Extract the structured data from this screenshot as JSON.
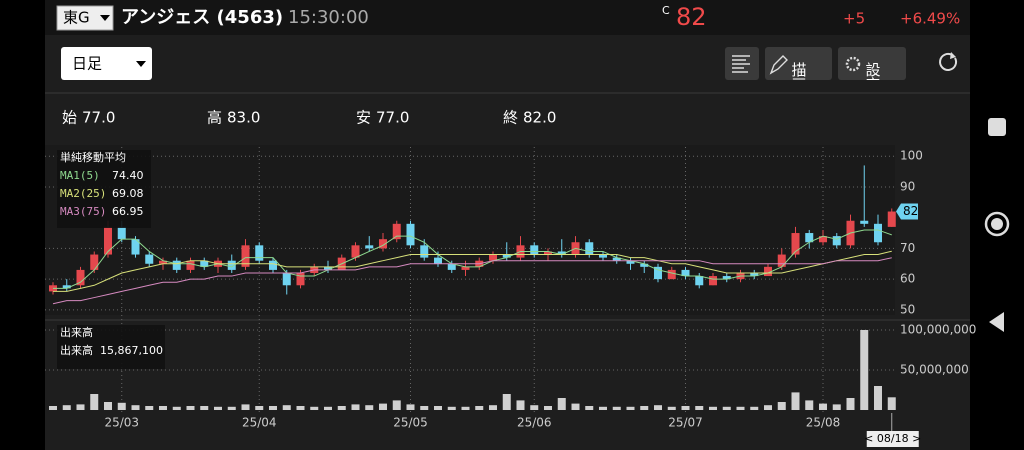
{
  "header": {
    "market": "東G",
    "name": "アンジェス (4563)",
    "time": "15:30:00",
    "close_mark": "C",
    "price": "82",
    "change": "+5",
    "change_pct": "+6.49%"
  },
  "toolbar": {
    "period": "日足",
    "buttons": [
      "描画",
      "設定"
    ]
  },
  "ohlc": [
    {
      "label": "始",
      "value": "77.0"
    },
    {
      "label": "高",
      "value": "83.0"
    },
    {
      "label": "安",
      "value": "77.0"
    },
    {
      "label": "終",
      "value": "82.0"
    }
  ],
  "chart_data": [
    {
      "type": "candlestick",
      "ma_title": "単純移動平均",
      "up_color": "#e5484d",
      "down_color": "#6fd3f0",
      "ylim": [
        48,
        103
      ],
      "yticks": [
        50,
        60,
        70,
        90,
        100
      ],
      "grid": true,
      "candles": [
        [
          56,
          59,
          55,
          58
        ],
        [
          58,
          60,
          56,
          57
        ],
        [
          58,
          64,
          57,
          63
        ],
        [
          63,
          69,
          62,
          68
        ],
        [
          68,
          79,
          67,
          77
        ],
        [
          77,
          79,
          72,
          73
        ],
        [
          73,
          74,
          67,
          68
        ],
        [
          68,
          69,
          64,
          65
        ],
        [
          65,
          67,
          63,
          66
        ],
        [
          66,
          67,
          62,
          63
        ],
        [
          63,
          67,
          62,
          66
        ],
        [
          66,
          67,
          63,
          64
        ],
        [
          64,
          67,
          62,
          66
        ],
        [
          66,
          68,
          62,
          63
        ],
        [
          64,
          73,
          63,
          71
        ],
        [
          71,
          72,
          65,
          66
        ],
        [
          66,
          67,
          62,
          63
        ],
        [
          62,
          63,
          55,
          58
        ],
        [
          58,
          63,
          57,
          62
        ],
        [
          62,
          65,
          61,
          64
        ],
        [
          64,
          66,
          62,
          63
        ],
        [
          63,
          68,
          63,
          67
        ],
        [
          67,
          72,
          66,
          71
        ],
        [
          71,
          74,
          69,
          70
        ],
        [
          70,
          75,
          69,
          73
        ],
        [
          73,
          79,
          72,
          78
        ],
        [
          78,
          79,
          70,
          71
        ],
        [
          71,
          73,
          66,
          67
        ],
        [
          67,
          69,
          64,
          65
        ],
        [
          65,
          66,
          62,
          63
        ],
        [
          63,
          66,
          61,
          64
        ],
        [
          64,
          67,
          63,
          66
        ],
        [
          66,
          69,
          65,
          68
        ],
        [
          68,
          72,
          66,
          67
        ],
        [
          67,
          74,
          66,
          71
        ],
        [
          71,
          72,
          67,
          68
        ],
        [
          68,
          70,
          66,
          69
        ],
        [
          69,
          73,
          67,
          68
        ],
        [
          68,
          74,
          67,
          72
        ],
        [
          72,
          73,
          67,
          68
        ],
        [
          68,
          69,
          66,
          67
        ],
        [
          67,
          68,
          65,
          66
        ],
        [
          66,
          67,
          63,
          65
        ],
        [
          65,
          66,
          62,
          64
        ],
        [
          64,
          65,
          59,
          60
        ],
        [
          60,
          64,
          60,
          63
        ],
        [
          63,
          64,
          60,
          61
        ],
        [
          61,
          62,
          57,
          58
        ],
        [
          58,
          62,
          58,
          61
        ],
        [
          61,
          62,
          59,
          60
        ],
        [
          60,
          63,
          59,
          62
        ],
        [
          62,
          63,
          60,
          61
        ],
        [
          61,
          65,
          61,
          64
        ],
        [
          64,
          70,
          63,
          68
        ],
        [
          68,
          77,
          67,
          75
        ],
        [
          75,
          76,
          70,
          72
        ],
        [
          72,
          76,
          71,
          74
        ],
        [
          74,
          75,
          70,
          71
        ],
        [
          71,
          81,
          70,
          79
        ],
        [
          79,
          97,
          77,
          78
        ],
        [
          78,
          81,
          71,
          72
        ],
        [
          77,
          83,
          77,
          82
        ]
      ],
      "series": [
        {
          "name": "MA1(5)",
          "color": "#8fd98f",
          "value_label": "74.40",
          "values": [
            57,
            57,
            59,
            63,
            69,
            73,
            73,
            69,
            66,
            65,
            65,
            64,
            65,
            64,
            67,
            67,
            67,
            62,
            61,
            61,
            63,
            65,
            67,
            69,
            71,
            74,
            74,
            72,
            68,
            65,
            64,
            64,
            66,
            67,
            69,
            69,
            69,
            68,
            70,
            69,
            69,
            67,
            66,
            65,
            63,
            62,
            61,
            61,
            60,
            60,
            61,
            61,
            62,
            64,
            69,
            72,
            74,
            73,
            75,
            76,
            76,
            74.4
          ]
        },
        {
          "name": "MA2(25)",
          "color": "#d7e07a",
          "value_label": "69.08",
          "values": [
            56,
            56,
            57,
            58,
            60,
            62,
            63,
            64,
            65,
            65,
            66,
            66,
            65,
            65,
            65,
            65,
            65,
            64,
            64,
            64,
            64,
            64,
            64,
            65,
            66,
            67,
            68,
            68,
            68,
            68,
            68,
            68,
            68,
            68,
            68,
            68,
            68,
            68,
            68,
            68,
            68,
            68,
            67,
            67,
            66,
            65,
            65,
            64,
            63,
            62,
            62,
            62,
            62,
            62,
            63,
            64,
            65,
            66,
            67,
            68,
            68,
            69.08
          ]
        },
        {
          "name": "MA3(75)",
          "color": "#d68ac0",
          "value_label": "66.95",
          "values": [
            52,
            53,
            53,
            54,
            55,
            56,
            57,
            58,
            59,
            59,
            60,
            60,
            61,
            61,
            62,
            62,
            62,
            62,
            62,
            63,
            63,
            63,
            63,
            64,
            64,
            64,
            65,
            65,
            65,
            65,
            65,
            65,
            66,
            66,
            66,
            66,
            66,
            66,
            66,
            66,
            66,
            66,
            66,
            66,
            66,
            66,
            66,
            66,
            65,
            65,
            65,
            65,
            65,
            65,
            65,
            65,
            65,
            66,
            66,
            66,
            66,
            66.95
          ]
        }
      ]
    },
    {
      "type": "bar",
      "title": "出来高",
      "legend_label": "出来高",
      "legend_value": "15,867,100",
      "color": "#d0d0d0",
      "cursor_label": "< 08/18 >",
      "ylim": [
        0,
        110000000
      ],
      "grid": true,
      "yticks": [
        {
          "value": 50000000,
          "label": "50,000,000"
        },
        {
          "value": 100000000,
          "label": "100,000,000"
        }
      ],
      "categories": [
        null,
        null,
        null,
        null,
        null,
        "25/03",
        null,
        null,
        null,
        null,
        null,
        null,
        null,
        null,
        null,
        "25/04",
        null,
        null,
        null,
        null,
        null,
        null,
        null,
        null,
        null,
        null,
        "25/05",
        null,
        null,
        null,
        null,
        null,
        null,
        null,
        null,
        "25/06",
        null,
        null,
        null,
        null,
        null,
        null,
        null,
        null,
        null,
        null,
        "25/07",
        null,
        null,
        null,
        null,
        null,
        null,
        null,
        null,
        null,
        "25/08",
        null,
        null,
        null,
        null,
        null
      ],
      "values": [
        5000000,
        6000000,
        7000000,
        20000000,
        10000000,
        9000000,
        6000000,
        5000000,
        5000000,
        4000000,
        5000000,
        5000000,
        4000000,
        4000000,
        7000000,
        5000000,
        5000000,
        6000000,
        5000000,
        4000000,
        4000000,
        5000000,
        7000000,
        6000000,
        8000000,
        12000000,
        7000000,
        5000000,
        5000000,
        4000000,
        4000000,
        5000000,
        6000000,
        20000000,
        12000000,
        6000000,
        5000000,
        15000000,
        8000000,
        5000000,
        4000000,
        4000000,
        4000000,
        5000000,
        6000000,
        4000000,
        5000000,
        5000000,
        4000000,
        4000000,
        4000000,
        4000000,
        6000000,
        10000000,
        22000000,
        12000000,
        8000000,
        7000000,
        15000000,
        100000000,
        30000000,
        15867100
      ]
    }
  ]
}
